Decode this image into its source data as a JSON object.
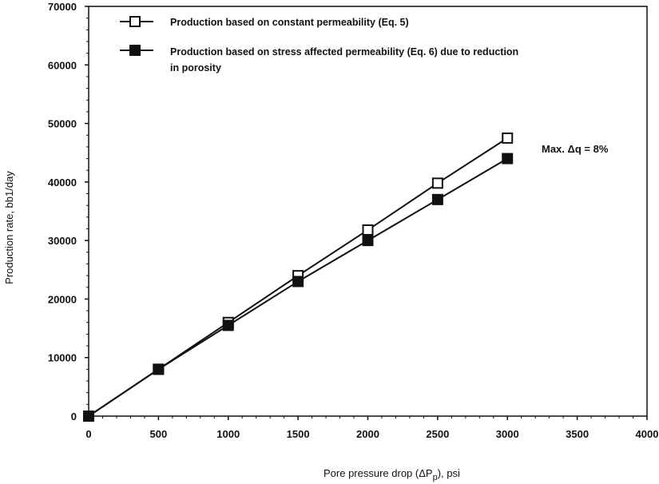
{
  "chart_data": {
    "type": "line",
    "xlabel": "Pore pressure drop (ΔP",
    "xlabel_sub": "p",
    "xlabel_suffix": "), psi",
    "ylabel": "Production rate, bb1/day",
    "xlim": [
      0,
      4000
    ],
    "ylim": [
      0,
      70000
    ],
    "x_ticks": [
      "0",
      "500",
      "1000",
      "1500",
      "2000",
      "2500",
      "3000",
      "3500",
      "4000"
    ],
    "y_ticks": [
      "0",
      "10000",
      "20000",
      "30000",
      "40000",
      "50000",
      "60000",
      "70000"
    ],
    "grid": false,
    "legend_position": "top-left",
    "x": [
      0,
      500,
      1000,
      1500,
      2000,
      2500,
      3000
    ],
    "series": [
      {
        "name": "Production based on constant permeability (Eq. 5)",
        "marker": "open-square",
        "values": [
          0,
          8000,
          16000,
          24000,
          31800,
          39800,
          47500
        ]
      },
      {
        "name_lines": [
          "Production based on stress affected permeability (Eq. 6) due to reduction",
          "in porosity"
        ],
        "marker": "filled-square",
        "values": [
          0,
          8000,
          15500,
          23000,
          30000,
          37000,
          44000
        ]
      }
    ],
    "annotation": "Max. Δq = 8%"
  }
}
